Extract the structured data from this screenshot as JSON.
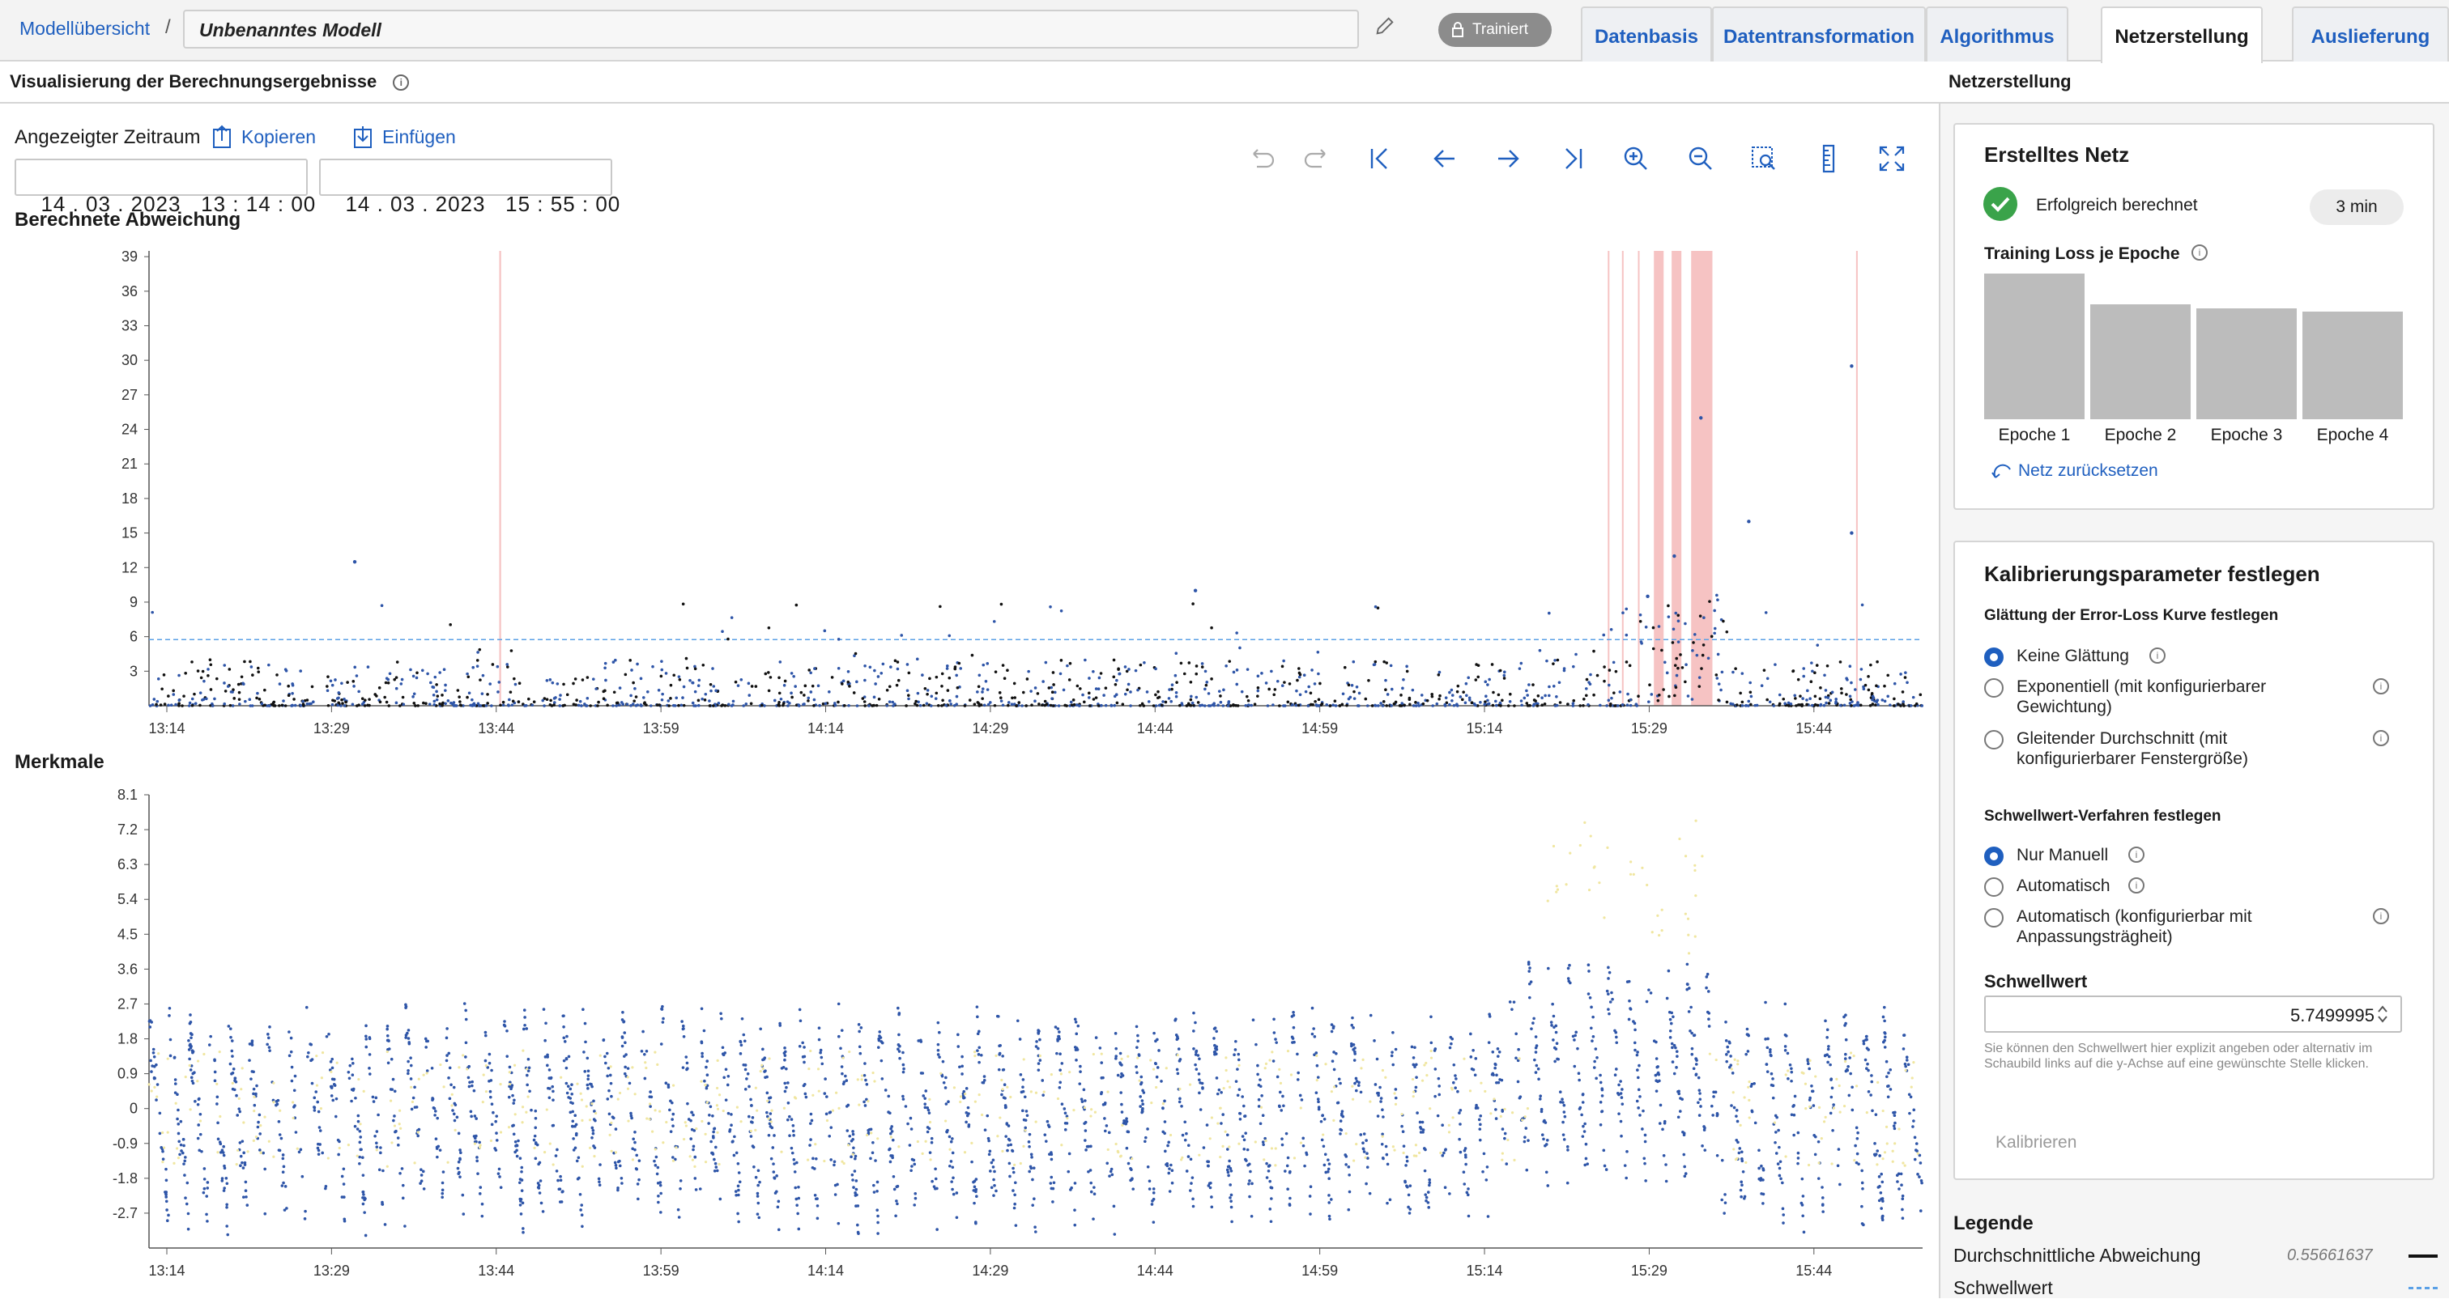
{
  "topbar": {
    "breadcrumb_link": "Modellübersicht",
    "breadcrumb_sep": "/",
    "model_name": "Unbenanntes Modell",
    "status_badge": "Trainiert",
    "tabs": [
      {
        "label": "Datenbasis",
        "active": false
      },
      {
        "label": "Datentransformation",
        "active": false
      },
      {
        "label": "Algorithmus",
        "active": false
      },
      {
        "label": "Netzerstellung",
        "active": true
      },
      {
        "label": "Auslieferung",
        "active": false
      }
    ]
  },
  "left": {
    "title": "Visualisierung der Berechnungsergebnisse",
    "range_label": "Angezeigter Zeitraum",
    "copy_label": "Kopieren",
    "paste_label": "Einfügen",
    "start": {
      "day": "14",
      "month": "03",
      "year": "2023",
      "hour": "13",
      "minute": "14",
      "second": "00"
    },
    "end": {
      "day": "14",
      "month": "03",
      "year": "2023",
      "hour": "15",
      "minute": "55",
      "second": "00"
    },
    "tools": [
      "undo-icon",
      "redo-icon",
      "first-icon",
      "back-icon",
      "forward-icon",
      "last-icon",
      "zoom-in-icon",
      "zoom-out-icon",
      "zoom-area-icon",
      "ruler-icon",
      "fullscreen-icon"
    ]
  },
  "chart_data": [
    {
      "type": "scatter",
      "title": "Berechnete Abweichung",
      "x_ticks": [
        "13:14",
        "13:29",
        "13:44",
        "13:59",
        "14:14",
        "14:29",
        "14:44",
        "14:59",
        "15:14",
        "15:29",
        "15:44"
      ],
      "y_ticks": [
        39,
        36,
        33,
        30,
        27,
        24,
        21,
        18,
        15,
        12,
        9,
        6,
        3
      ],
      "ylim": [
        0,
        39.5
      ],
      "threshold": 5.75,
      "series": [
        {
          "name": "Durchschnittliche Abweichung",
          "color": "#111111"
        },
        {
          "name": "Schwellwert",
          "color": "#5aa0e6"
        }
      ],
      "anomaly_color": "#f4b4b4"
    },
    {
      "type": "scatter",
      "title": "Merkmale",
      "x_ticks": [
        "13:14",
        "13:29",
        "13:44",
        "13:59",
        "14:14",
        "14:29",
        "14:44",
        "14:59",
        "15:14",
        "15:29",
        "15:44"
      ],
      "y_ticks": [
        8.1,
        7.2,
        6.3,
        5.4,
        4.5,
        3.6,
        2.7,
        1.8,
        0.9,
        0,
        -0.9,
        -1.8,
        -2.7
      ],
      "ylim": [
        -3.6,
        8.1
      ],
      "colors": [
        "#2e55a8",
        "#f0e6a0"
      ]
    }
  ],
  "right": {
    "header": "Netzerstellung",
    "net_card": {
      "title": "Erstelltes Netz",
      "status": "Erfolgreich berechnet",
      "duration": "3 min",
      "loss_title": "Training Loss je Epoche",
      "epochs": [
        {
          "label": "Epoche 1",
          "value": 1.0
        },
        {
          "label": "Epoche 2",
          "value": 0.79
        },
        {
          "label": "Epoche 3",
          "value": 0.76
        },
        {
          "label": "Epoche 4",
          "value": 0.74
        }
      ],
      "reset_label": "Netz zurücksetzen"
    },
    "calib": {
      "title": "Kalibrierungsparameter festlegen",
      "smoothing_title": "Glättung der Error-Loss Kurve festlegen",
      "smoothing_opts": [
        {
          "line1": "Keine Glättung",
          "line2": "",
          "selected": true
        },
        {
          "line1": "Exponentiell (mit konfigurierbarer",
          "line2": "Gewichtung)",
          "selected": false
        },
        {
          "line1": "Gleitender Durchschnitt (mit",
          "line2": "konfigurierbarer Fenstergröße)",
          "selected": false
        }
      ],
      "threshold_title": "Schwellwert-Verfahren festlegen",
      "threshold_opts": [
        {
          "line1": "Nur Manuell",
          "line2": "",
          "selected": true
        },
        {
          "line1": "Automatisch",
          "line2": "",
          "selected": false
        },
        {
          "line1": "Automatisch (konfigurierbar mit",
          "line2": "Anpassungsträgheit)",
          "selected": false
        }
      ],
      "value_label": "Schwellwert",
      "value": "5.7499995",
      "hint": "Sie können den Schwellwert hier explizit angeben oder alternativ im Schaubild links auf die y-Achse auf eine gewünschte Stelle klicken.",
      "calibrate_label": "Kalibrieren"
    },
    "legend": {
      "title": "Legende",
      "items": [
        {
          "label": "Durchschnittliche Abweichung",
          "value": "0.55661637"
        },
        {
          "label": "Schwellwert",
          "value": ""
        }
      ]
    }
  }
}
